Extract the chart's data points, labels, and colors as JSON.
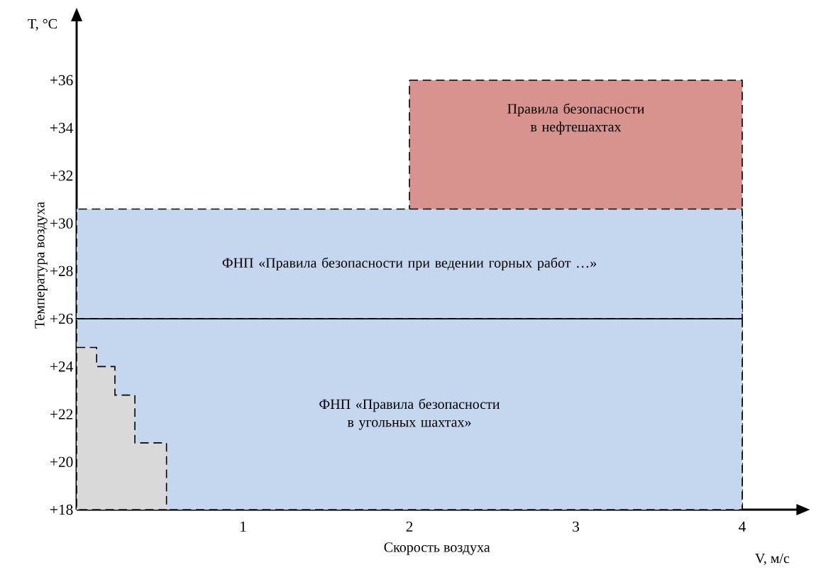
{
  "chart_data": {
    "type": "area",
    "xlabel": "Скорость воздуха",
    "ylabel": "Температура воздуха",
    "annotations": [
      "T, °C",
      "V, м/с"
    ],
    "xlim": [
      0,
      4.33
    ],
    "ylim": [
      18,
      38.5
    ],
    "xticks": [
      1,
      2,
      3,
      4
    ],
    "yticks": [
      {
        "value": 18,
        "label": "+18"
      },
      {
        "value": 20,
        "label": "+20"
      },
      {
        "value": 22,
        "label": "+22"
      },
      {
        "value": 24,
        "label": "+24"
      },
      {
        "value": 26,
        "label": "+26"
      },
      {
        "value": 28,
        "label": "+28"
      },
      {
        "value": 30,
        "label": "+30"
      },
      {
        "value": 32,
        "label": "+32"
      },
      {
        "value": 34,
        "label": "+34"
      },
      {
        "value": 36,
        "label": "+36"
      }
    ],
    "grid": false,
    "marker": "none",
    "bands": [
      {
        "axis": "y",
        "from": 18,
        "to": 26,
        "label": "ФНП «Правила безопасности в угольных шахтах»",
        "color": "#c5d7ef"
      },
      {
        "axis": "y",
        "from": 26,
        "to": 30.6,
        "label": "ФНП «Правила безопасности при ведении горных работ …»",
        "color": "#c5d7ef"
      }
    ],
    "ref_lines": [
      {
        "axis": "y",
        "value": 26,
        "line_style": "solid"
      }
    ],
    "series": [
      {
        "name": "Правила безопасности в нефтешахтах",
        "color": "#d8938f",
        "line_style": "dashed",
        "x": [
          2,
          4
        ],
        "values": [
          36,
          36
        ]
      },
      {
        "color": "#d9d9d9",
        "line_style": "dashed",
        "x": [
          0,
          0.12,
          0.12,
          0.23,
          0.23,
          0.35,
          0.35,
          0.54,
          0.54
        ],
        "values": [
          24.8,
          24.8,
          24,
          24,
          22.8,
          22.8,
          20.8,
          20.8,
          18
        ]
      }
    ]
  }
}
